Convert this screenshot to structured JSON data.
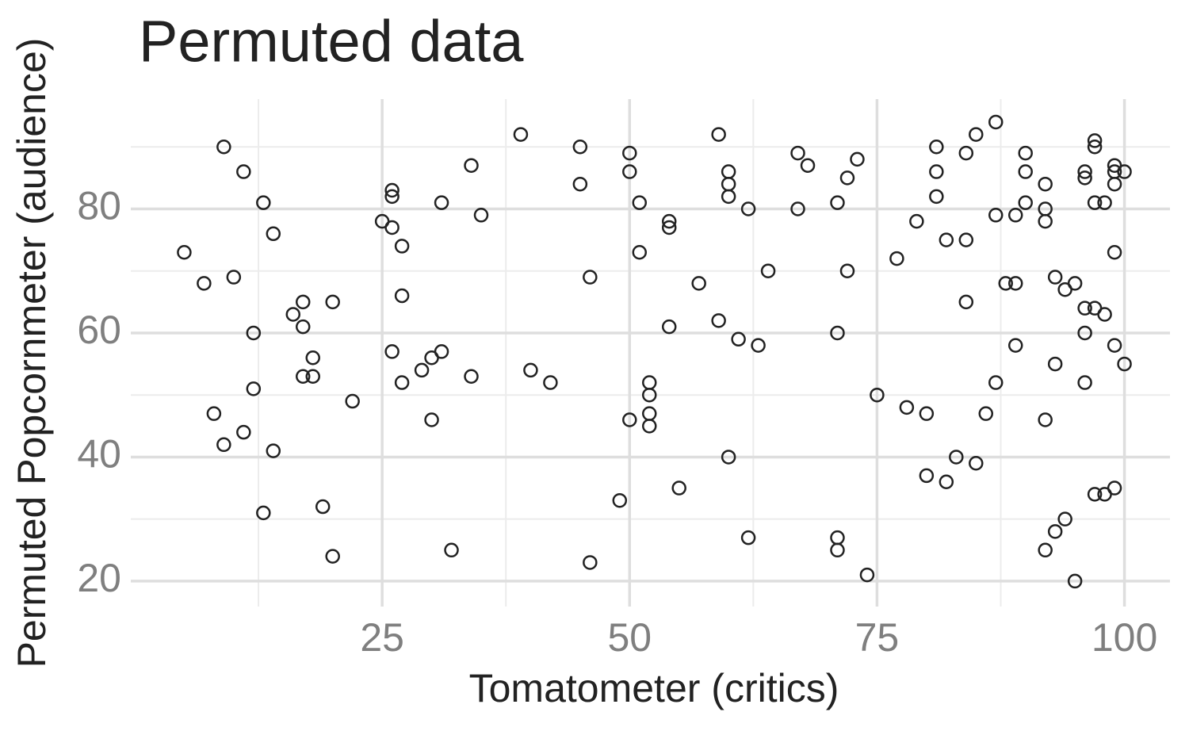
{
  "chart_data": {
    "type": "scatter",
    "title": "Permuted data",
    "x_label": "Tomatometer (critics)",
    "y_label": "Permuted Popcornmeter (audience)",
    "x": [
      5,
      7,
      9,
      10,
      11,
      13,
      14,
      8,
      9,
      11,
      12,
      12,
      14,
      13,
      16,
      17,
      17,
      17,
      18,
      18,
      19,
      20,
      20,
      22,
      25,
      26,
      26,
      26,
      27,
      27,
      26,
      27,
      29,
      30,
      30,
      31,
      31,
      32,
      34,
      34,
      35,
      39,
      40,
      42,
      45,
      45,
      46,
      46,
      49,
      50,
      50,
      50,
      51,
      51,
      52,
      52,
      52,
      52,
      54,
      54,
      54,
      55,
      57,
      59,
      59,
      60,
      60,
      60,
      60,
      61,
      62,
      62,
      63,
      64,
      67,
      67,
      68,
      71,
      71,
      71,
      71,
      72,
      72,
      73,
      74,
      75,
      77,
      78,
      79,
      80,
      80,
      81,
      81,
      81,
      82,
      82,
      83,
      84,
      84,
      84,
      85,
      85,
      86,
      87,
      87,
      87,
      88,
      89,
      89,
      89,
      90,
      90,
      90,
      92,
      92,
      92,
      92,
      92,
      93,
      93,
      93,
      94,
      94,
      95,
      95,
      96,
      96,
      96,
      96,
      96,
      97,
      97,
      97,
      97,
      97,
      98,
      98,
      98,
      99,
      99,
      99,
      99,
      99,
      99,
      100,
      100
    ],
    "values": [
      73,
      68,
      90,
      69,
      86,
      81,
      76,
      47,
      42,
      44,
      60,
      51,
      41,
      31,
      63,
      65,
      61,
      53,
      56,
      53,
      32,
      65,
      24,
      49,
      78,
      83,
      82,
      77,
      74,
      66,
      57,
      52,
      54,
      56,
      46,
      57,
      81,
      25,
      87,
      53,
      79,
      92,
      54,
      52,
      90,
      84,
      69,
      23,
      33,
      89,
      86,
      46,
      81,
      73,
      52,
      50,
      47,
      45,
      78,
      77,
      61,
      35,
      68,
      92,
      62,
      86,
      84,
      82,
      40,
      59,
      80,
      27,
      58,
      70,
      89,
      80,
      87,
      81,
      60,
      27,
      25,
      85,
      70,
      88,
      21,
      50,
      72,
      48,
      78,
      37,
      47,
      90,
      86,
      82,
      75,
      36,
      40,
      89,
      75,
      65,
      92,
      39,
      47,
      94,
      79,
      52,
      68,
      68,
      79,
      58,
      89,
      86,
      81,
      84,
      80,
      78,
      46,
      25,
      69,
      55,
      28,
      67,
      30,
      68,
      20,
      86,
      85,
      64,
      60,
      52,
      91,
      90,
      81,
      64,
      34,
      81,
      63,
      34,
      87,
      86,
      84,
      73,
      58,
      35,
      86,
      55
    ],
    "xlim": [
      -0.4,
      104.6
    ],
    "ylim": [
      15.9,
      97.7
    ],
    "xticks": [
      25,
      50,
      75,
      100
    ],
    "yticks": [
      20,
      40,
      60,
      80
    ],
    "x_minor": [
      12.5,
      37.5,
      62.5,
      87.5
    ],
    "y_minor": [
      30,
      50,
      70,
      90
    ],
    "grid": true,
    "color": "#222222"
  }
}
